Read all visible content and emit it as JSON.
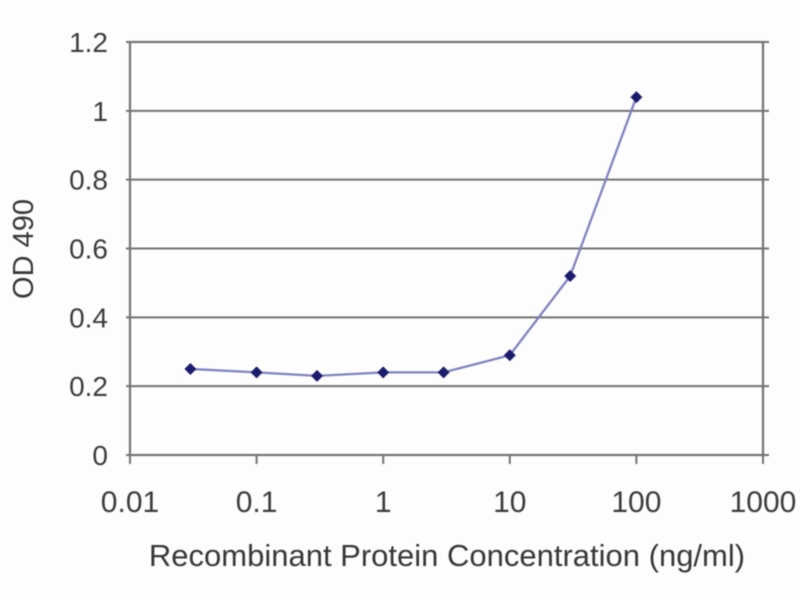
{
  "chart_data": {
    "type": "line",
    "title": "",
    "xlabel": "Recombinant Protein Concentration (ng/ml)",
    "ylabel": "OD 490",
    "x_scale": "log",
    "xlim": [
      0.01,
      1000
    ],
    "ylim": [
      0,
      1.2
    ],
    "x_ticks": [
      {
        "value": 0.01,
        "label": "0.01"
      },
      {
        "value": 0.1,
        "label": "0.1"
      },
      {
        "value": 1,
        "label": "1"
      },
      {
        "value": 10,
        "label": "10"
      },
      {
        "value": 100,
        "label": "100"
      },
      {
        "value": 1000,
        "label": "1000"
      }
    ],
    "y_ticks": [
      {
        "value": 0,
        "label": "0"
      },
      {
        "value": 0.2,
        "label": "0.2"
      },
      {
        "value": 0.4,
        "label": "0.4"
      },
      {
        "value": 0.6,
        "label": "0.6"
      },
      {
        "value": 0.8,
        "label": "0.8"
      },
      {
        "value": 1.0,
        "label": "1"
      },
      {
        "value": 1.2,
        "label": "1.2"
      }
    ],
    "grid": true,
    "legend": "none",
    "series": [
      {
        "name": "OD 490",
        "marker": "diamond",
        "x": [
          0.03,
          0.1,
          0.3,
          1,
          3,
          10,
          30,
          100
        ],
        "y": [
          0.25,
          0.24,
          0.23,
          0.24,
          0.24,
          0.29,
          0.52,
          1.04
        ]
      }
    ],
    "colors": {
      "marker": "#1c1c6e",
      "line": "#8083bf",
      "grid": "#737373",
      "axis_text": "#3c3c3c"
    }
  }
}
